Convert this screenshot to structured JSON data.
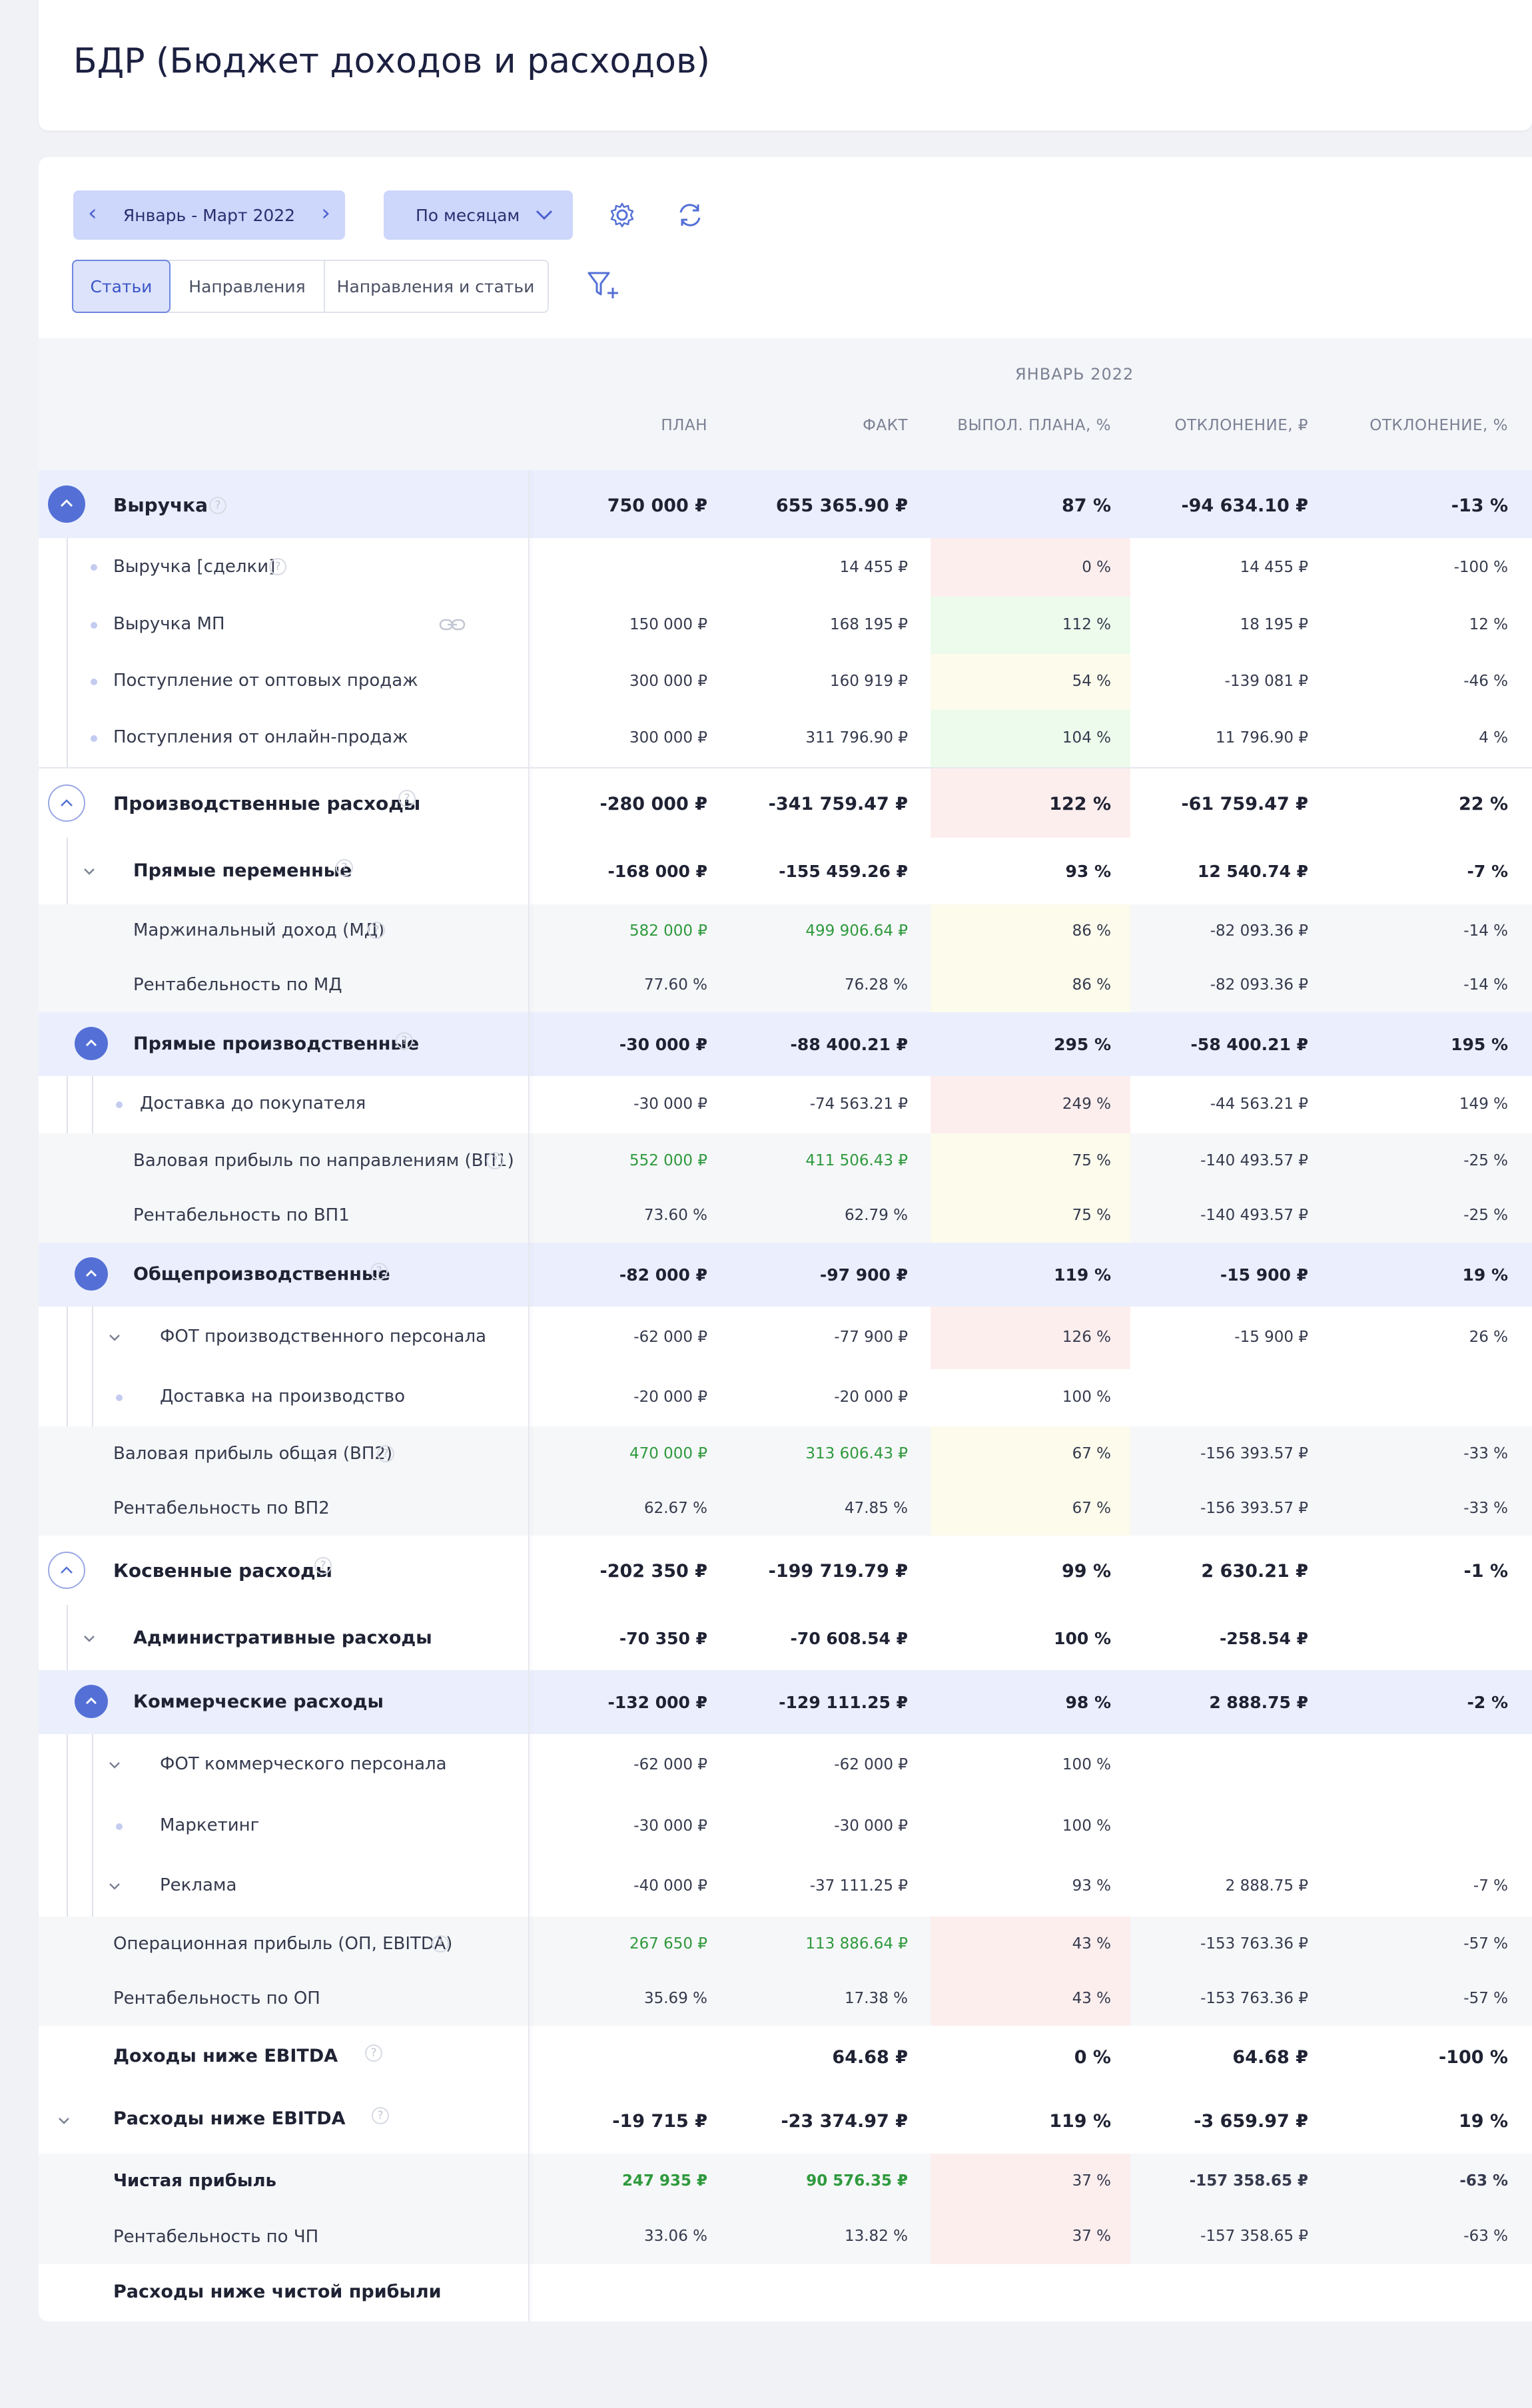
{
  "title": "БДР (Бюджет доходов и расходов)",
  "toolbar": {
    "period": "Январь - Март 2022",
    "grouping": "По месяцам",
    "tabs": [
      "Статьи",
      "Направления",
      "Направления и статьи"
    ]
  },
  "header": {
    "month": "ЯНВАРЬ 2022",
    "columns": [
      "ПЛАН",
      "ФАКТ",
      "ВЫПОЛ. ПЛАНА, %",
      "ОТКЛОНЕНИЕ, ₽",
      "ОТКЛОНЕНИЕ, %"
    ]
  },
  "rows": [
    {
      "label": "Выручка",
      "plan": "750 000 ₽",
      "fact": "655 365.90 ₽",
      "pct": "87 %",
      "dev": "-94 634.10 ₽",
      "devp": "-13 %"
    },
    {
      "label": "Выручка [сделки]",
      "plan": "",
      "fact": "14 455 ₽",
      "pct": "0 %",
      "dev": "14 455 ₽",
      "devp": "-100 %"
    },
    {
      "label": "Выручка МП",
      "plan": "150 000 ₽",
      "fact": "168 195 ₽",
      "pct": "112 %",
      "dev": "18 195 ₽",
      "devp": "12 %"
    },
    {
      "label": "Поступление от оптовых продаж",
      "plan": "300 000 ₽",
      "fact": "160 919 ₽",
      "pct": "54 %",
      "dev": "-139 081 ₽",
      "devp": "-46 %"
    },
    {
      "label": "Поступления от онлайн-продаж",
      "plan": "300 000 ₽",
      "fact": "311 796.90 ₽",
      "pct": "104 %",
      "dev": "11 796.90 ₽",
      "devp": "4 %"
    },
    {
      "label": "Производственные расходы",
      "plan": "-280 000 ₽",
      "fact": "-341 759.47 ₽",
      "pct": "122 %",
      "dev": "-61 759.47 ₽",
      "devp": "22 %"
    },
    {
      "label": "Прямые переменные",
      "plan": "-168 000 ₽",
      "fact": "-155 459.26 ₽",
      "pct": "93 %",
      "dev": "12 540.74 ₽",
      "devp": "-7 %"
    },
    {
      "label": "Маржинальный доход (МД)",
      "plan": "582 000 ₽",
      "fact": "499 906.64 ₽",
      "pct": "86 %",
      "dev": "-82 093.36 ₽",
      "devp": "-14 %"
    },
    {
      "label": "Рентабельность по МД",
      "plan": "77.60 %",
      "fact": "76.28 %",
      "pct": "86 %",
      "dev": "-82 093.36 ₽",
      "devp": "-14 %"
    },
    {
      "label": "Прямые производственные",
      "plan": "-30 000 ₽",
      "fact": "-88 400.21 ₽",
      "pct": "295 %",
      "dev": "-58 400.21 ₽",
      "devp": "195 %"
    },
    {
      "label": "Доставка до покупателя",
      "plan": "-30 000 ₽",
      "fact": "-74 563.21 ₽",
      "pct": "249 %",
      "dev": "-44 563.21 ₽",
      "devp": "149 %"
    },
    {
      "label": "Валовая прибыль по направлениям (ВП1)",
      "plan": "552 000 ₽",
      "fact": "411 506.43 ₽",
      "pct": "75 %",
      "dev": "-140 493.57 ₽",
      "devp": "-25 %"
    },
    {
      "label": "Рентабельность по ВП1",
      "plan": "73.60 %",
      "fact": "62.79 %",
      "pct": "75 %",
      "dev": "-140 493.57 ₽",
      "devp": "-25 %"
    },
    {
      "label": "Общепроизводственные",
      "plan": "-82 000 ₽",
      "fact": "-97 900 ₽",
      "pct": "119 %",
      "dev": "-15 900 ₽",
      "devp": "19 %"
    },
    {
      "label": "ФОТ производственного персонала",
      "plan": "-62 000 ₽",
      "fact": "-77 900 ₽",
      "pct": "126 %",
      "dev": "-15 900 ₽",
      "devp": "26 %"
    },
    {
      "label": "Доставка на производство",
      "plan": "-20 000 ₽",
      "fact": "-20 000 ₽",
      "pct": "100 %",
      "dev": "",
      "devp": ""
    },
    {
      "label": "Валовая прибыль общая (ВП2)",
      "plan": "470 000 ₽",
      "fact": "313 606.43 ₽",
      "pct": "67 %",
      "dev": "-156 393.57 ₽",
      "devp": "-33 %"
    },
    {
      "label": "Рентабельность по ВП2",
      "plan": "62.67 %",
      "fact": "47.85 %",
      "pct": "67 %",
      "dev": "-156 393.57 ₽",
      "devp": "-33 %"
    },
    {
      "label": "Косвенные расходы",
      "plan": "-202 350 ₽",
      "fact": "-199 719.79 ₽",
      "pct": "99 %",
      "dev": "2 630.21 ₽",
      "devp": "-1 %"
    },
    {
      "label": "Административные расходы",
      "plan": "-70 350 ₽",
      "fact": "-70 608.54 ₽",
      "pct": "100 %",
      "dev": "-258.54 ₽",
      "devp": ""
    },
    {
      "label": "Коммерческие расходы",
      "plan": "-132 000 ₽",
      "fact": "-129 111.25 ₽",
      "pct": "98 %",
      "dev": "2 888.75 ₽",
      "devp": "-2 %"
    },
    {
      "label": "ФОТ коммерческого персонала",
      "plan": "-62 000 ₽",
      "fact": "-62 000 ₽",
      "pct": "100 %",
      "dev": "",
      "devp": ""
    },
    {
      "label": "Маркетинг",
      "plan": "-30 000 ₽",
      "fact": "-30 000 ₽",
      "pct": "100 %",
      "dev": "",
      "devp": ""
    },
    {
      "label": "Реклама",
      "plan": "-40 000 ₽",
      "fact": "-37 111.25 ₽",
      "pct": "93 %",
      "dev": "2 888.75 ₽",
      "devp": "-7 %"
    },
    {
      "label": "Операционная прибыль (ОП, EBITDA)",
      "plan": "267 650 ₽",
      "fact": "113 886.64 ₽",
      "pct": "43 %",
      "dev": "-153 763.36 ₽",
      "devp": "-57 %"
    },
    {
      "label": "Рентабельность по ОП",
      "plan": "35.69 %",
      "fact": "17.38 %",
      "pct": "43 %",
      "dev": "-153 763.36 ₽",
      "devp": "-57 %"
    },
    {
      "label": "Доходы ниже EBITDA",
      "plan": "",
      "fact": "64.68 ₽",
      "pct": "0 %",
      "dev": "64.68 ₽",
      "devp": "-100 %"
    },
    {
      "label": "Расходы ниже EBITDA",
      "plan": "-19 715 ₽",
      "fact": "-23 374.97 ₽",
      "pct": "119 %",
      "dev": "-3 659.97 ₽",
      "devp": "19 %"
    },
    {
      "label": "Чистая прибыль",
      "plan": "247 935 ₽",
      "fact": "90 576.35 ₽",
      "pct": "37 %",
      "dev": "-157 358.65 ₽",
      "devp": "-63 %"
    },
    {
      "label": "Рентабельность по ЧП",
      "plan": "33.06 %",
      "fact": "13.82 %",
      "pct": "37 %",
      "dev": "-157 358.65 ₽",
      "devp": "-63 %"
    },
    {
      "label": "Расходы ниже чистой прибыли",
      "plan": "",
      "fact": "",
      "pct": "",
      "dev": "",
      "devp": ""
    }
  ],
  "colors": {
    "accent": "#5470d6",
    "positive": "#2f9a3d",
    "rowHighlight": "#ebeffd"
  },
  "icons": [
    "chevron-left-icon",
    "chevron-right-icon",
    "chevron-down-icon",
    "gear-icon",
    "refresh-icon",
    "filter-plus-icon",
    "help-icon",
    "link-icon"
  ]
}
